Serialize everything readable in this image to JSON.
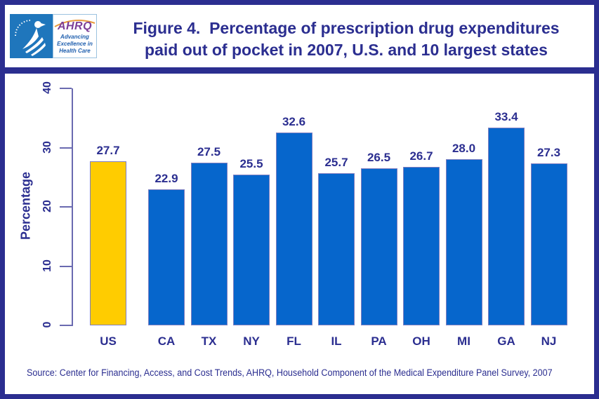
{
  "header": {
    "title_line1": "Figure 4.  Percentage of prescription drug expenditures",
    "title_line2": "paid out of pocket in 2007, U.S. and 10 largest states",
    "logo": {
      "acronym": "AHRQ",
      "tagline_line1": "Advancing",
      "tagline_line2": "Excellence in",
      "tagline_line3": "Health Care"
    }
  },
  "chart_data": {
    "type": "bar",
    "title": "Percentage of prescription drug expenditures paid out of pocket in 2007, U.S. and 10 largest states",
    "categories": [
      "US",
      "CA",
      "TX",
      "NY",
      "FL",
      "IL",
      "PA",
      "OH",
      "MI",
      "GA",
      "NJ"
    ],
    "values": [
      27.7,
      22.9,
      27.5,
      25.5,
      32.6,
      25.7,
      26.5,
      26.7,
      28.0,
      33.4,
      27.3
    ],
    "value_labels": [
      "27.7",
      "22.9",
      "27.5",
      "25.5",
      "32.6",
      "25.7",
      "26.5",
      "26.7",
      "28.0",
      "33.4",
      "27.3"
    ],
    "xlabel": "",
    "ylabel": "Percentage",
    "ylim": [
      0,
      40
    ],
    "y_ticks": [
      0,
      10,
      20,
      30,
      40
    ],
    "grid": false,
    "legend": false,
    "bar_color": "#0666cc",
    "highlight_index": 0,
    "highlight_color": "#ffcc00",
    "bar_border_color": "#7e7ec0"
  },
  "footer": {
    "source": "Source: Center for Financing, Access, and Cost Trends, AHRQ, Household Component of the Medical Expenditure Panel Survey, 2007"
  },
  "colors": {
    "frame_navy": "#2b2e90",
    "axis": "#6a6ab0",
    "hhs_logo_blue": "#1f76bc",
    "ahrq_purple": "#7d3f98",
    "arc_orange": "#e89a3c",
    "tagline_blue": "#1f5fae"
  }
}
